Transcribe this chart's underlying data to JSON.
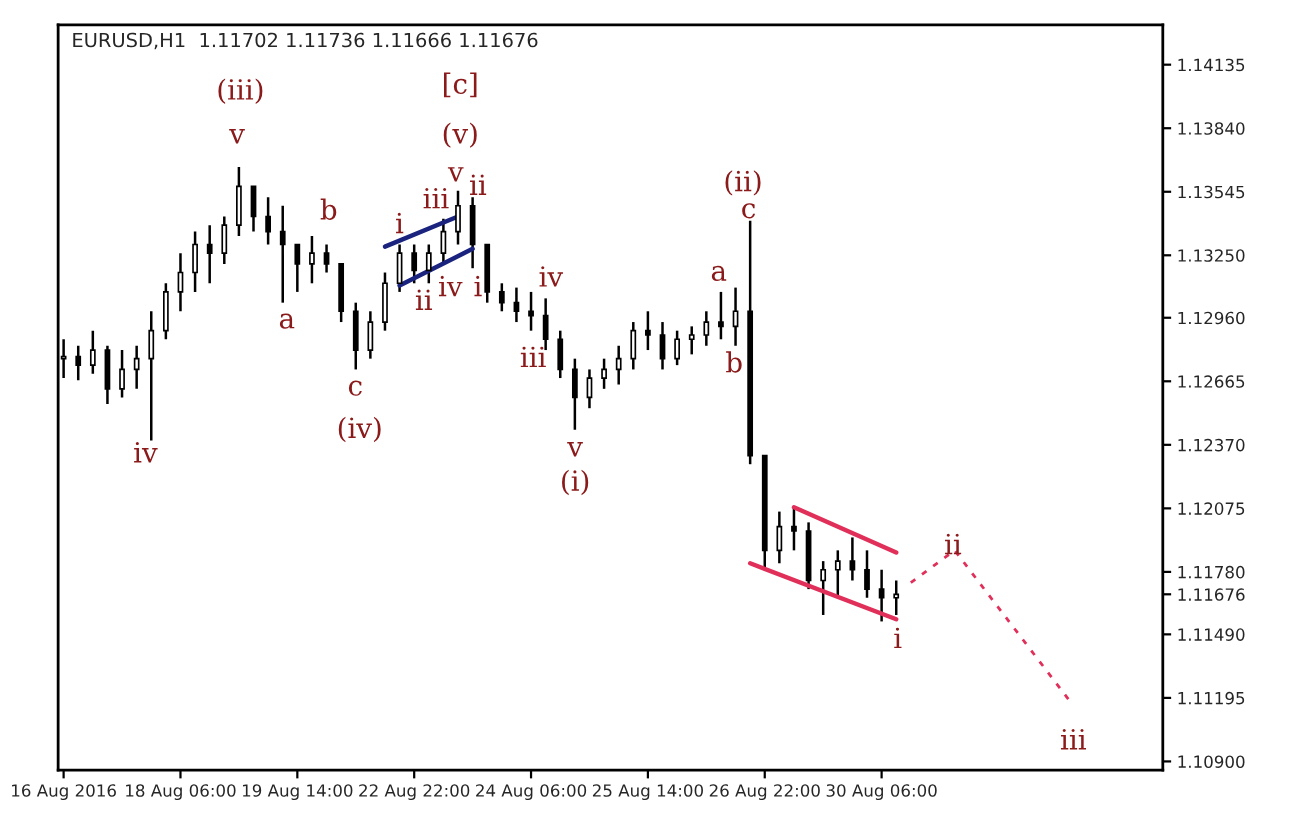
{
  "chart_data": {
    "type": "candlestick",
    "title": "EURUSD,H1  1.11702 1.11736 1.11666 1.11676",
    "categories": [
      "16 Aug 2016",
      null,
      null,
      null,
      null,
      null,
      null,
      null,
      "18 Aug 06:00",
      null,
      null,
      null,
      null,
      null,
      null,
      null,
      "19 Aug 14:00",
      null,
      null,
      null,
      null,
      null,
      null,
      null,
      "22 Aug 22:00",
      null,
      null,
      null,
      null,
      null,
      null,
      null,
      "24 Aug 06:00",
      null,
      null,
      null,
      null,
      null,
      null,
      null,
      "25 Aug 14:00",
      null,
      null,
      null,
      null,
      null,
      null,
      null,
      "26 Aug 22:00",
      null,
      null,
      null,
      null,
      null,
      null,
      null,
      "30 Aug 06:00",
      null,
      null,
      null,
      null,
      null,
      null,
      null,
      null,
      null,
      null,
      null,
      null,
      null,
      null,
      null,
      null,
      null,
      null,
      null
    ],
    "ohlc": [
      [
        1.1277,
        1.1286,
        1.1268,
        1.1278
      ],
      [
        1.1278,
        1.1283,
        1.1267,
        1.1274
      ],
      [
        1.1274,
        1.129,
        1.127,
        1.1281
      ],
      [
        1.1281,
        1.1283,
        1.1256,
        1.1263
      ],
      [
        1.1263,
        1.1281,
        1.1259,
        1.1272
      ],
      [
        1.1272,
        1.1283,
        1.1263,
        1.1277
      ],
      [
        1.1277,
        1.1299,
        1.1239,
        1.129
      ],
      [
        1.129,
        1.1312,
        1.1286,
        1.1308
      ],
      [
        1.1308,
        1.1326,
        1.1299,
        1.1317
      ],
      [
        1.1317,
        1.1336,
        1.1308,
        1.133
      ],
      [
        1.133,
        1.1339,
        1.1312,
        1.1326
      ],
      [
        1.1326,
        1.1343,
        1.1321,
        1.1339
      ],
      [
        1.1339,
        1.1366,
        1.1334,
        1.1357
      ],
      [
        1.1357,
        1.1357,
        1.1336,
        1.1343
      ],
      [
        1.1343,
        1.1352,
        1.133,
        1.1336
      ],
      [
        1.1336,
        1.1348,
        1.1303,
        1.133
      ],
      [
        1.133,
        1.133,
        1.1308,
        1.1321
      ],
      [
        1.1321,
        1.1334,
        1.1312,
        1.1326
      ],
      [
        1.1326,
        1.133,
        1.1317,
        1.1321
      ],
      [
        1.1321,
        1.1321,
        1.1294,
        1.1299
      ],
      [
        1.1299,
        1.1303,
        1.1272,
        1.1281
      ],
      [
        1.1281,
        1.1299,
        1.1277,
        1.1294
      ],
      [
        1.1294,
        1.1317,
        1.129,
        1.1312
      ],
      [
        1.1312,
        1.133,
        1.1308,
        1.1326
      ],
      [
        1.1326,
        1.133,
        1.1312,
        1.1318
      ],
      [
        1.1318,
        1.133,
        1.1312,
        1.1326
      ],
      [
        1.1326,
        1.1342,
        1.1321,
        1.1336
      ],
      [
        1.1336,
        1.1355,
        1.133,
        1.1348
      ],
      [
        1.1348,
        1.1352,
        1.1319,
        1.133
      ],
      [
        1.133,
        1.133,
        1.1303,
        1.1308
      ],
      [
        1.1308,
        1.1312,
        1.1299,
        1.1303
      ],
      [
        1.1303,
        1.131,
        1.1294,
        1.1299
      ],
      [
        1.1299,
        1.1308,
        1.129,
        1.1297
      ],
      [
        1.1297,
        1.1305,
        1.1281,
        1.1286
      ],
      [
        1.1286,
        1.129,
        1.1268,
        1.1272
      ],
      [
        1.1272,
        1.1277,
        1.1244,
        1.1259
      ],
      [
        1.1259,
        1.1272,
        1.1254,
        1.1268
      ],
      [
        1.1268,
        1.1277,
        1.1263,
        1.1272
      ],
      [
        1.1272,
        1.1283,
        1.1265,
        1.1277
      ],
      [
        1.1277,
        1.1294,
        1.1272,
        1.129
      ],
      [
        1.129,
        1.1299,
        1.1281,
        1.1288
      ],
      [
        1.1288,
        1.1294,
        1.1272,
        1.1277
      ],
      [
        1.1277,
        1.129,
        1.1274,
        1.1286
      ],
      [
        1.1286,
        1.1292,
        1.1279,
        1.1288
      ],
      [
        1.1288,
        1.1299,
        1.1283,
        1.1294
      ],
      [
        1.1294,
        1.1308,
        1.1286,
        1.1292
      ],
      [
        1.1292,
        1.131,
        1.1283,
        1.1299
      ],
      [
        1.1299,
        1.1341,
        1.1228,
        1.1232
      ],
      [
        1.1232,
        1.1232,
        1.1179,
        1.1188
      ],
      [
        1.1188,
        1.1206,
        1.1182,
        1.1199
      ],
      [
        1.1199,
        1.1208,
        1.1188,
        1.1197
      ],
      [
        1.1197,
        1.1201,
        1.117,
        1.1174
      ],
      [
        1.1174,
        1.1183,
        1.1158,
        1.1179
      ],
      [
        1.1179,
        1.1188,
        1.1166,
        1.1183
      ],
      [
        1.1183,
        1.1194,
        1.1174,
        1.1179
      ],
      [
        1.1179,
        1.1188,
        1.1166,
        1.117
      ],
      [
        1.117,
        1.1179,
        1.1155,
        1.1166
      ],
      [
        1.1166,
        1.1174,
        1.1158,
        1.11676
      ],
      null,
      null,
      null,
      null,
      null,
      null,
      null,
      null,
      null,
      null,
      null,
      null,
      null,
      null,
      null,
      null,
      null,
      null
    ],
    "series": [
      {
        "type": "line",
        "color": "#e0305a",
        "line_style": "solid",
        "values": [
          null,
          null,
          null,
          null,
          null,
          null,
          null,
          null,
          null,
          null,
          null,
          null,
          null,
          null,
          null,
          null,
          null,
          null,
          null,
          null,
          null,
          null,
          null,
          null,
          null,
          null,
          null,
          null,
          null,
          null,
          null,
          null,
          null,
          null,
          null,
          null,
          null,
          null,
          null,
          null,
          null,
          null,
          null,
          null,
          null,
          null,
          null,
          null,
          null,
          null,
          1.1208,
          null,
          null,
          null,
          null,
          null,
          null,
          1.1187,
          null,
          null,
          null,
          null,
          null,
          null,
          null,
          null,
          null,
          null,
          null,
          null,
          null,
          null,
          null,
          null,
          null,
          null
        ]
      },
      {
        "type": "line",
        "color": "#e0305a",
        "line_style": "solid",
        "values": [
          null,
          null,
          null,
          null,
          null,
          null,
          null,
          null,
          null,
          null,
          null,
          null,
          null,
          null,
          null,
          null,
          null,
          null,
          null,
          null,
          null,
          null,
          null,
          null,
          null,
          null,
          null,
          null,
          null,
          null,
          null,
          null,
          null,
          null,
          null,
          null,
          null,
          null,
          null,
          null,
          null,
          null,
          null,
          null,
          null,
          null,
          null,
          1.1182,
          null,
          null,
          null,
          null,
          null,
          null,
          null,
          null,
          null,
          1.1156,
          null,
          null,
          null,
          null,
          null,
          null,
          null,
          null,
          null,
          null,
          null,
          null,
          null,
          null,
          null,
          null,
          null,
          null
        ]
      },
      {
        "type": "line",
        "color": "#1a237e",
        "line_style": "solid",
        "values": [
          null,
          null,
          null,
          null,
          null,
          null,
          null,
          null,
          null,
          null,
          null,
          null,
          null,
          null,
          null,
          null,
          null,
          null,
          null,
          null,
          null,
          null,
          1.1329,
          null,
          null,
          null,
          null,
          1.1343,
          null,
          null,
          null,
          null,
          null,
          null,
          null,
          null,
          null,
          null,
          null,
          null,
          null,
          null,
          null,
          null,
          null,
          null,
          null,
          null,
          null,
          null,
          null,
          null,
          null,
          null,
          null,
          null,
          null,
          null,
          null,
          null,
          null,
          null,
          null,
          null,
          null,
          null,
          null,
          null,
          null,
          null,
          null,
          null,
          null,
          null,
          null,
          null
        ]
      },
      {
        "type": "line",
        "color": "#1a237e",
        "line_style": "solid",
        "values": [
          null,
          null,
          null,
          null,
          null,
          null,
          null,
          null,
          null,
          null,
          null,
          null,
          null,
          null,
          null,
          null,
          null,
          null,
          null,
          null,
          null,
          null,
          null,
          1.1311,
          null,
          null,
          null,
          null,
          1.1328,
          null,
          null,
          null,
          null,
          null,
          null,
          null,
          null,
          null,
          null,
          null,
          null,
          null,
          null,
          null,
          null,
          null,
          null,
          null,
          null,
          null,
          null,
          null,
          null,
          null,
          null,
          null,
          null,
          null,
          null,
          null,
          null,
          null,
          null,
          null,
          null,
          null,
          null,
          null,
          null,
          null,
          null,
          null,
          null,
          null,
          null,
          null
        ]
      },
      {
        "type": "line",
        "color": "#e0305a",
        "line_style": "dashed",
        "values": [
          null,
          null,
          null,
          null,
          null,
          null,
          null,
          null,
          null,
          null,
          null,
          null,
          null,
          null,
          null,
          null,
          null,
          null,
          null,
          null,
          null,
          null,
          null,
          null,
          null,
          null,
          null,
          null,
          null,
          null,
          null,
          null,
          null,
          null,
          null,
          null,
          null,
          null,
          null,
          null,
          null,
          null,
          null,
          null,
          null,
          null,
          null,
          null,
          null,
          null,
          null,
          null,
          null,
          null,
          null,
          null,
          null,
          null,
          1.1173,
          null,
          null,
          1.1188,
          null,
          null,
          null,
          null,
          null,
          null,
          null,
          1.1117,
          null,
          null,
          null,
          null,
          null,
          null
        ]
      }
    ],
    "ylim": [
      1.1086,
      1.1432
    ],
    "yticks": [
      1.14135,
      {
        "value": 1.1384,
        "label": "1.13840"
      },
      1.13545,
      {
        "value": 1.1325,
        "label": "1.13250"
      },
      {
        "value": 1.1296,
        "label": "1.12960"
      },
      1.12665,
      {
        "value": 1.1237,
        "label": "1.12370"
      },
      1.12075,
      {
        "value": 1.1178,
        "label": "1.11780"
      },
      1.11676,
      {
        "value": 1.1149,
        "label": "1.11490"
      },
      1.11195,
      {
        "value": 1.109,
        "label": "1.10900"
      }
    ],
    "annotations": [
      "(iii)",
      "v",
      "b",
      "a",
      "c",
      "(iv)",
      "iv",
      "[c]",
      "(v)",
      "v",
      "ii",
      {
        "text": "i",
        "y": 1.133
      },
      "iii",
      {
        "text": "ii",
        "y": 1.1312
      },
      "iv",
      "i",
      "iv",
      "iii",
      "v",
      "(i)",
      "a",
      "b",
      "(ii)",
      "c",
      {
        "text": "i",
        "y": 1.1155
      },
      "ii",
      "iii"
    ],
    "grid": false
  }
}
